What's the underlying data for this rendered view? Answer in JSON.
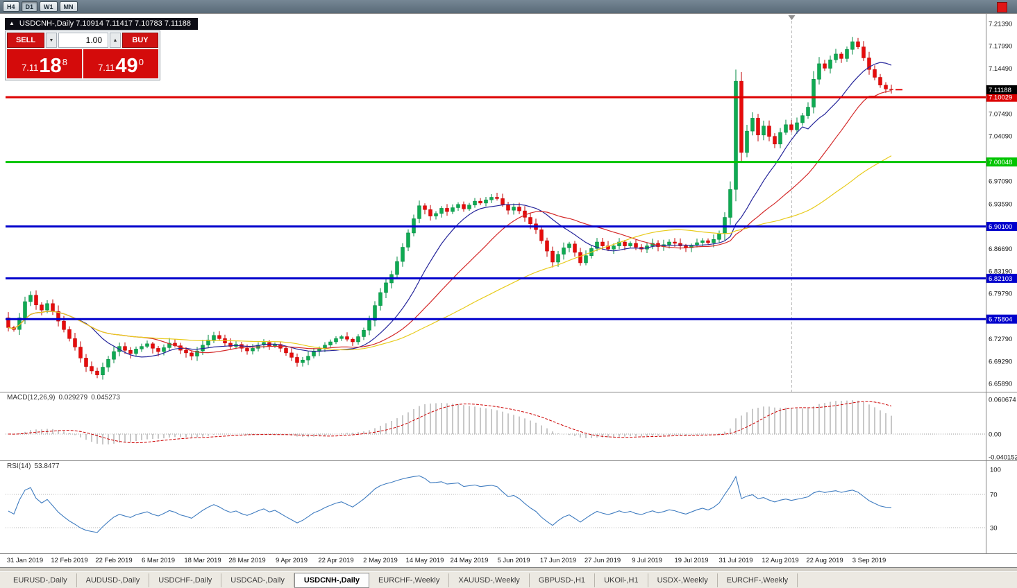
{
  "toolbar": {
    "timeframes": [
      "H4",
      "D1",
      "W1",
      "MN"
    ],
    "active": "D1"
  },
  "icons": {
    "collapse": "▲",
    "spin_down": "▼",
    "spin_up": "▲"
  },
  "titlebar": {
    "symbol_info": "USDCNH-,Daily  7.10914 7.11417 7.10783 7.11188"
  },
  "trade_panel": {
    "sell_label": "SELL",
    "buy_label": "BUY",
    "volume": "1.00",
    "sell_price": {
      "small": "7.11",
      "big": "18",
      "sup": "8"
    },
    "buy_price": {
      "small": "7.11",
      "big": "49",
      "sup": "0"
    }
  },
  "chart_data": {
    "type": "candlestick",
    "title": "USDCNH-,Daily",
    "open": "7.10914",
    "high": "7.11417",
    "low": "7.10783",
    "close": "7.11188",
    "x_labels": [
      "31 Jan 2019",
      "12 Feb 2019",
      "22 Feb 2019",
      "6 Mar 2019",
      "18 Mar 2019",
      "28 Mar 2019",
      "9 Apr 2019",
      "22 Apr 2019",
      "2 May 2019",
      "14 May 2019",
      "24 May 2019",
      "5 Jun 2019",
      "17 Jun 2019",
      "27 Jun 2019",
      "9 Jul 2019",
      "19 Jul 2019",
      "31 Jul 2019",
      "12 Aug 2019",
      "22 Aug 2019",
      "3 Sep 2019"
    ],
    "label_every": 8,
    "first_open": 6.76,
    "closes": [
      6.745,
      6.742,
      6.76,
      6.785,
      6.795,
      6.78,
      6.772,
      6.782,
      6.77,
      6.755,
      6.742,
      6.728,
      6.715,
      6.698,
      6.685,
      6.678,
      6.672,
      6.684,
      6.696,
      6.708,
      6.716,
      6.71,
      6.705,
      6.712,
      6.716,
      6.72,
      6.713,
      6.708,
      6.714,
      6.721,
      6.717,
      6.71,
      6.706,
      6.701,
      6.709,
      6.718,
      6.726,
      6.733,
      6.728,
      6.721,
      6.716,
      6.719,
      6.713,
      6.709,
      6.713,
      6.718,
      6.722,
      6.716,
      6.719,
      6.713,
      6.706,
      6.699,
      6.691,
      6.695,
      6.701,
      6.708,
      6.712,
      6.718,
      6.723,
      6.728,
      6.731,
      6.727,
      6.723,
      6.731,
      6.741,
      6.756,
      6.779,
      6.799,
      6.814,
      6.827,
      6.847,
      6.869,
      6.891,
      6.913,
      6.933,
      6.927,
      6.917,
      6.921,
      6.929,
      6.924,
      6.93,
      6.935,
      6.928,
      6.934,
      6.94,
      6.937,
      6.942,
      6.946,
      6.944,
      6.935,
      6.926,
      6.931,
      6.925,
      6.915,
      6.905,
      6.896,
      6.879,
      6.863,
      6.846,
      6.858,
      6.868,
      6.874,
      6.861,
      6.845,
      6.856,
      6.867,
      6.877,
      6.871,
      6.866,
      6.871,
      6.877,
      6.871,
      6.875,
      6.869,
      6.866,
      6.871,
      6.875,
      6.87,
      6.873,
      6.877,
      6.875,
      6.871,
      6.868,
      6.872,
      6.876,
      6.879,
      6.876,
      6.881,
      6.89,
      6.915,
      6.958,
      7.125,
      7.015,
      7.048,
      7.068,
      7.042,
      7.056,
      7.04,
      7.028,
      7.046,
      7.058,
      7.05,
      7.061,
      7.072,
      7.085,
      7.128,
      7.152,
      7.145,
      7.158,
      7.167,
      7.16,
      7.174,
      7.186,
      7.178,
      7.161,
      7.143,
      7.131,
      7.119,
      7.113,
      7.112
    ],
    "ylim": [
      6.646,
      7.2289
    ],
    "axis_ticks": [
      "7.21390",
      "7.17990",
      "7.14490",
      "7.07490",
      "7.04090",
      "6.97090",
      "6.93590",
      "6.86690",
      "6.83190",
      "6.79790",
      "6.72790",
      "6.69290",
      "6.65890"
    ],
    "hlines": [
      {
        "price": 7.10029,
        "color": "#dd0000",
        "label": "7.10029"
      },
      {
        "price": 7.00048,
        "color": "#00c400",
        "label": "7.00048"
      },
      {
        "price": 6.901,
        "color": "#0000cc",
        "label": "6.90100"
      },
      {
        "price": 6.82103,
        "color": "#0000cc",
        "label": "6.82103"
      },
      {
        "price": 6.75804,
        "color": "#0000cc",
        "label": "6.75804"
      }
    ],
    "current_price": {
      "value": 7.11188,
      "label": "7.11188",
      "bg": "#000000"
    },
    "separator_index": 141,
    "ma_periods": [
      {
        "period": 13,
        "color": "#26269b"
      },
      {
        "period": 25,
        "color": "#d42a2a"
      },
      {
        "period": 50,
        "color": "#e8cb1c"
      }
    ],
    "colors": {
      "up": "#0faa52",
      "up_edge": "#008840",
      "down": "#e60c0c",
      "down_edge": "#c00000"
    }
  },
  "indicators": {
    "macd": {
      "label": "MACD(12,26,9)",
      "value1": "0.029279",
      "value2": "0.045273",
      "fast": 12,
      "slow": 26,
      "signal": 9,
      "axis": [
        "0.060674",
        "0.00",
        "-0.040152"
      ],
      "ylim": [
        -0.0461,
        0.0741
      ]
    },
    "rsi": {
      "label": "RSI(14)",
      "value": "53.8477",
      "period": 14,
      "axis": [
        "100",
        "70",
        "30"
      ],
      "levels": [
        70,
        30
      ],
      "ylim": [
        -0.8,
        110.8
      ]
    }
  },
  "tabs": {
    "items": [
      "EURUSD-,Daily",
      "AUDUSD-,Daily",
      "USDCHF-,Daily",
      "USDCAD-,Daily",
      "USDCNH-,Daily",
      "EURCHF-,Weekly",
      "XAUUSD-,Weekly",
      "GBPUSD-,H1",
      "UKOil-,H1",
      "USDX-,Weekly",
      "EURCHF-,Weekly"
    ],
    "active_index": 4
  }
}
